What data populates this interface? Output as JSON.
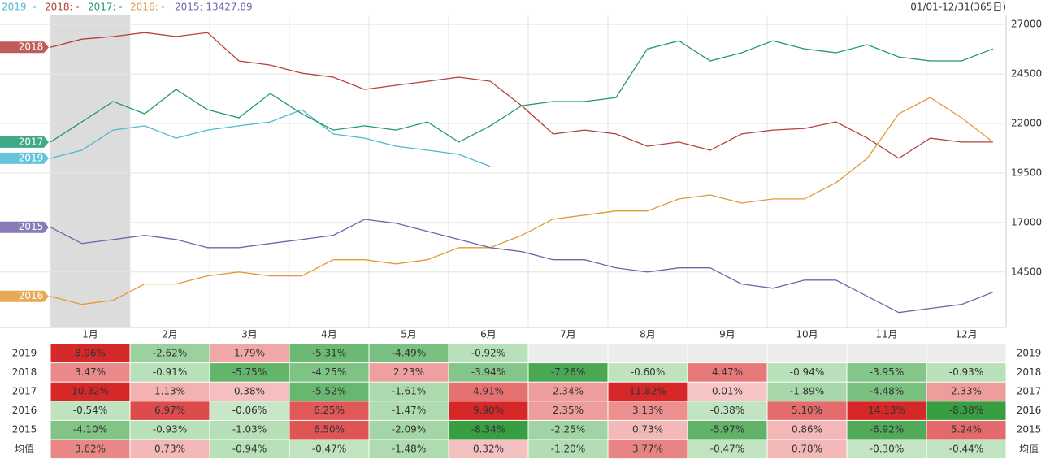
{
  "chart_data": {
    "type": "line",
    "range_label": "01/01-12/31(365日)",
    "xlim": [
      1,
      366
    ],
    "ylim": [
      11700,
      27500
    ],
    "yticks": [
      14500,
      17000,
      19500,
      22000,
      24500,
      27000
    ],
    "grid": true,
    "x": [
      1,
      13,
      25,
      37,
      49,
      61,
      73,
      85,
      97,
      109,
      121,
      133,
      145,
      157,
      169,
      181,
      193,
      205,
      217,
      229,
      241,
      253,
      265,
      277,
      289,
      301,
      313,
      325,
      337,
      349,
      361
    ],
    "series": [
      {
        "name": "2019",
        "legend": "2019: -",
        "color": "#4cb8d6",
        "values": [
          20240,
          20650,
          21670,
          21880,
          21260,
          21670,
          21880,
          22080,
          22700,
          21470,
          21260,
          20850,
          20650,
          20440,
          19830,
          null,
          null,
          null,
          null,
          null,
          null,
          null,
          null,
          null,
          null,
          null,
          null,
          null,
          null,
          null,
          null
        ]
      },
      {
        "name": "2018",
        "legend": "2018: -",
        "color": "#b5403d",
        "values": [
          25850,
          26260,
          26390,
          26590,
          26390,
          26590,
          25160,
          24950,
          24540,
          24340,
          23720,
          23930,
          24130,
          24340,
          24130,
          22900,
          21470,
          21670,
          21470,
          20850,
          21060,
          20650,
          21470,
          21670,
          21750,
          22080,
          21260,
          20240,
          21260,
          21060,
          21060
        ]
      },
      {
        "name": "2017",
        "legend": "2017: -",
        "color": "#1f9a70",
        "values": [
          21060,
          22080,
          23110,
          22490,
          23720,
          22700,
          22290,
          23520,
          22490,
          21670,
          21880,
          21670,
          22080,
          21060,
          21880,
          22900,
          23110,
          23110,
          23310,
          25770,
          26180,
          25160,
          25570,
          26180,
          25770,
          25570,
          25980,
          25360,
          25160,
          25160,
          25770
        ]
      },
      {
        "name": "2016",
        "legend": "2016: -",
        "color": "#e39a35",
        "values": [
          13270,
          12860,
          13070,
          13890,
          13890,
          14300,
          14500,
          14300,
          14300,
          15120,
          15120,
          14910,
          15120,
          15730,
          15730,
          16350,
          17170,
          17370,
          17580,
          17580,
          18190,
          18390,
          17980,
          18190,
          18190,
          19010,
          20240,
          22490,
          23310,
          22290,
          21060
        ]
      },
      {
        "name": "2015",
        "legend": "2015: 13427.89",
        "color": "#7464ad",
        "values": [
          16760,
          15940,
          16140,
          16350,
          16140,
          15730,
          15730,
          15940,
          16140,
          16350,
          17160,
          16960,
          16550,
          16140,
          15730,
          15530,
          15120,
          15120,
          14710,
          14500,
          14710,
          14710,
          13890,
          13680,
          14090,
          14090,
          13270,
          12450,
          12660,
          12860,
          13480
        ]
      }
    ]
  },
  "table": {
    "columns": [
      "1月",
      "2月",
      "3月",
      "4月",
      "5月",
      "6月",
      "7月",
      "8月",
      "9月",
      "10月",
      "11月",
      "12月"
    ],
    "rows": [
      {
        "label": "2019",
        "values": [
          8.96,
          -2.62,
          1.79,
          -5.31,
          -4.49,
          -0.92,
          null,
          null,
          null,
          null,
          null,
          null
        ],
        "value_labels": [
          "8.96%",
          "-2.62%",
          "1.79%",
          "-5.31%",
          "-4.49%",
          "-0.92%",
          null,
          null,
          null,
          null,
          null,
          null
        ]
      },
      {
        "label": "2018",
        "values": [
          3.47,
          -0.91,
          -5.75,
          -4.25,
          2.23,
          -3.94,
          -7.26,
          -0.6,
          4.47,
          -0.94,
          -3.95,
          -0.93
        ],
        "value_labels": [
          "3.47%",
          "-0.91%",
          "-5.75%",
          "-4.25%",
          "2.23%",
          "-3.94%",
          "-7.26%",
          "-0.60%",
          "4.47%",
          "-0.94%",
          "-3.95%",
          "-0.93%"
        ]
      },
      {
        "label": "2017",
        "values": [
          10.32,
          1.13,
          0.38,
          -5.52,
          -1.61,
          4.91,
          2.34,
          11.82,
          0.01,
          -1.89,
          -4.48,
          2.33
        ],
        "value_labels": [
          "10.32%",
          "1.13%",
          "0.38%",
          "-5.52%",
          "-1.61%",
          "4.91%",
          "2.34%",
          "11.82%",
          "0.01%",
          "-1.89%",
          "-4.48%",
          "2.33%"
        ]
      },
      {
        "label": "2016",
        "values": [
          -0.54,
          6.97,
          -0.06,
          6.25,
          -1.47,
          9.9,
          2.35,
          3.13,
          -0.38,
          5.1,
          14.13,
          -8.38
        ],
        "value_labels": [
          "-0.54%",
          "6.97%",
          "-0.06%",
          "6.25%",
          "-1.47%",
          "9.90%",
          "2.35%",
          "3.13%",
          "-0.38%",
          "5.10%",
          "14.13%",
          "-8.38%"
        ]
      },
      {
        "label": "2015",
        "values": [
          -4.1,
          -0.93,
          -1.03,
          6.5,
          -2.09,
          -8.34,
          -2.25,
          0.73,
          -5.97,
          0.86,
          -6.92,
          5.24
        ],
        "value_labels": [
          "-4.10%",
          "-0.93%",
          "-1.03%",
          "6.50%",
          "-2.09%",
          "-8.34%",
          "-2.25%",
          "0.73%",
          "-5.97%",
          "0.86%",
          "-6.92%",
          "5.24%"
        ]
      },
      {
        "label": "均值",
        "values": [
          3.62,
          0.73,
          -0.94,
          -0.47,
          -1.48,
          0.32,
          -1.2,
          3.77,
          -0.47,
          0.78,
          -0.3,
          -0.44
        ],
        "value_labels": [
          "3.62%",
          "0.73%",
          "-0.94%",
          "-0.47%",
          "-1.48%",
          "0.32%",
          "-1.20%",
          "3.77%",
          "-0.47%",
          "0.78%",
          "-0.30%",
          "-0.44%"
        ]
      }
    ]
  }
}
